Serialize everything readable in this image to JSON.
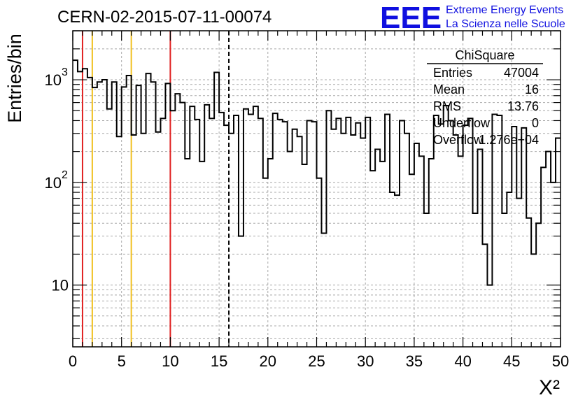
{
  "chart_data": {
    "type": "histogram-step",
    "title": "CERN-02-2015-07-11-00074",
    "xlabel": "X²",
    "ylabel": "Entries/bin",
    "xlim": [
      0,
      50
    ],
    "ylim": [
      2.5,
      3000
    ],
    "yscale": "log",
    "grid": true,
    "x_ticks": [
      0,
      5,
      10,
      15,
      20,
      25,
      30,
      35,
      40,
      45,
      50
    ],
    "y_tick_labels": [
      {
        "value": 10,
        "label": "10"
      },
      {
        "value": 100,
        "label": "10",
        "exp": "2"
      },
      {
        "value": 1000,
        "label": "10",
        "exp": "3"
      }
    ],
    "bin_width": 0.5,
    "bin_start": 0,
    "values": [
      1550,
      1200,
      1280,
      1050,
      840,
      950,
      1000,
      520,
      950,
      280,
      850,
      1100,
      290,
      880,
      300,
      1150,
      950,
      310,
      420,
      920,
      500,
      730,
      600,
      170,
      550,
      410,
      160,
      570,
      420,
      1180,
      480,
      360,
      300,
      450,
      30,
      520,
      460,
      550,
      420,
      110,
      170,
      470,
      410,
      390,
      200,
      330,
      280,
      150,
      400,
      390,
      110,
      32,
      500,
      330,
      420,
      300,
      430,
      290,
      380,
      270,
      430,
      130,
      210,
      160,
      460,
      80,
      75,
      400,
      300,
      120,
      240,
      180,
      50,
      170,
      450,
      370,
      560,
      400,
      290,
      180,
      360,
      420,
      50,
      210,
      25,
      10,
      460,
      450,
      50,
      80,
      350,
      70,
      340,
      45,
      20,
      40,
      140,
      200,
      100,
      270
    ],
    "vertical_lines": [
      {
        "x": 1,
        "color": "#e02020",
        "style": "solid"
      },
      {
        "x": 2,
        "color": "#f0c020",
        "style": "solid"
      },
      {
        "x": 6,
        "color": "#f0c020",
        "style": "solid"
      },
      {
        "x": 10,
        "color": "#e02020",
        "style": "solid"
      },
      {
        "x": 16,
        "color": "#000000",
        "style": "dashed"
      }
    ],
    "stats_box": {
      "title": "ChiSquare",
      "rows": [
        {
          "label": "Entries",
          "value": "47004"
        },
        {
          "label": "Mean",
          "value": "16"
        },
        {
          "label": "RMS",
          "value": "13.76"
        },
        {
          "label": "Underflow",
          "value": "0"
        },
        {
          "label": "Overflow",
          "value": "1.276e+04"
        }
      ]
    }
  },
  "logo": {
    "mark": "EEE",
    "line1": "Extreme Energy Events",
    "line2": "La Scienza nelle Scuole",
    "color": "#1010e0"
  }
}
